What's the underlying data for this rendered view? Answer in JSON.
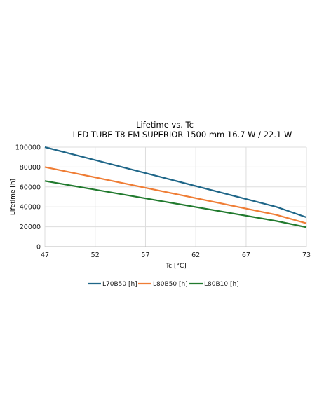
{
  "chart_data": {
    "type": "line",
    "title": "Lifetime vs. Tc",
    "subtitle": "LED TUBE T8 EM SUPERIOR 1500 mm 16.7 W / 22.1 W",
    "xlabel": "Tc [°C]",
    "ylabel": "Lifetime [h]",
    "xlim": [
      47,
      73
    ],
    "ylim": [
      0,
      100000
    ],
    "xticks": [
      "47",
      "52",
      "57",
      "62",
      "67",
      "73"
    ],
    "yticks": [
      "0",
      "20000",
      "40000",
      "60000",
      "80000",
      "100000"
    ],
    "grid": true,
    "legend_position": "bottom",
    "series": [
      {
        "name": "L70B50 [h]",
        "color": "#1f6688",
        "x": [
          47,
          70,
          73
        ],
        "y": [
          100000,
          40000,
          29500
        ]
      },
      {
        "name": "L80B50 [h]",
        "color": "#ef7d35",
        "x": [
          47,
          70,
          73
        ],
        "y": [
          80000,
          32000,
          23500
        ]
      },
      {
        "name": "L80B10 [h]",
        "color": "#217a2e",
        "x": [
          47,
          70,
          73
        ],
        "y": [
          66000,
          25800,
          19500
        ]
      }
    ]
  }
}
